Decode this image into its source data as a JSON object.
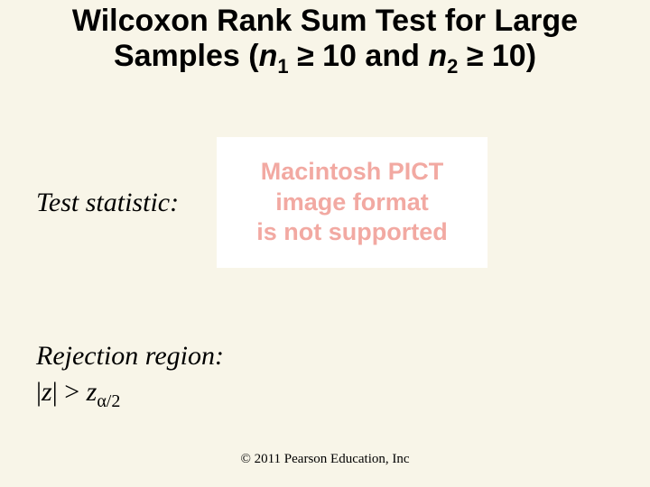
{
  "title": {
    "plain_before_n1": "Wilcoxon Rank Sum Test for Large Samples (",
    "n1_var": "n",
    "n1_sub": "1",
    "geq1": " ≥ 10 and ",
    "n2_var": "n",
    "n2_sub": "2",
    "after": " ≥ 10)",
    "line1_text": "Wilcoxon Rank Sum Test for Large",
    "line2_prefix": "Samples (",
    "fontsize": 34,
    "font_family": "Arial",
    "font_weight": "bold",
    "color": "#000000"
  },
  "test_statistic": {
    "label": "Test statistic:",
    "fontsize": 30,
    "font_style": "italic",
    "color": "#000000"
  },
  "pict_placeholder": {
    "line1": "Macintosh PICT",
    "line2": "image format",
    "line3": "is not supported",
    "text_color": "#f2a9a2",
    "background": "#ffffff",
    "font_family": "Arial",
    "font_weight": "bold",
    "fontsize": 27
  },
  "rejection": {
    "label": "Rejection region:",
    "label_fontsize": 30,
    "label_style": "italic",
    "formula": {
      "bar1": "|",
      "z": "z",
      "bar2": "|",
      "gt": " > ",
      "z2": "z",
      "sub": "α/2"
    },
    "formula_fontsize": 30,
    "color": "#000000"
  },
  "copyright": {
    "text": "© 2011 Pearson Education, Inc",
    "fontsize": 15,
    "color": "#000000"
  },
  "layout": {
    "slide_width": 720,
    "slide_height": 540,
    "background_color": "#f8f5e8"
  }
}
